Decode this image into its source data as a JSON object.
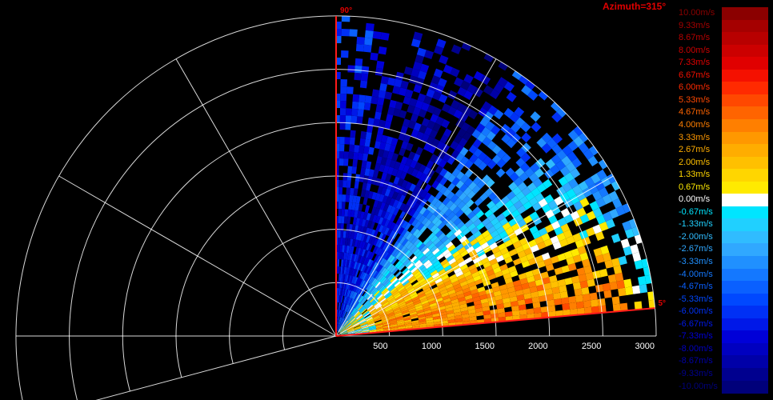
{
  "header": {
    "azimuth_label": "Azimuth=315°"
  },
  "chart_data": {
    "type": "heatmap",
    "subtype": "polar-sector-radar-velocity",
    "range_ticks": [
      500,
      1000,
      1500,
      2000,
      2500,
      3000
    ],
    "range_max": 3000,
    "scan_sector_start_label": "5°",
    "scan_sector_end_label": "90°",
    "scan_sector_deg": [
      5,
      90
    ],
    "grid_angles_deg": [
      0,
      30,
      60,
      90,
      120,
      150,
      180,
      195
    ],
    "legend": {
      "placement": "right",
      "entries": [
        {
          "label": "10.00m/s",
          "color": "#8b0000"
        },
        {
          "label": "9.33m/s",
          "color": "#a50000"
        },
        {
          "label": "8.67m/s",
          "color": "#b80000"
        },
        {
          "label": "8.00m/s",
          "color": "#cc0000"
        },
        {
          "label": "7.33m/s",
          "color": "#e00000"
        },
        {
          "label": "6.67m/s",
          "color": "#f51000"
        },
        {
          "label": "6.00m/s",
          "color": "#ff2a00"
        },
        {
          "label": "5.33m/s",
          "color": "#ff4800"
        },
        {
          "label": "4.67m/s",
          "color": "#ff6400"
        },
        {
          "label": "4.00m/s",
          "color": "#ff7f00"
        },
        {
          "label": "3.33m/s",
          "color": "#ff9800"
        },
        {
          "label": "2.67m/s",
          "color": "#ffad00"
        },
        {
          "label": "2.00m/s",
          "color": "#ffc000"
        },
        {
          "label": "1.33m/s",
          "color": "#ffd600"
        },
        {
          "label": "0.67m/s",
          "color": "#ffea00"
        },
        {
          "label": "0.00m/s",
          "color": "#ffffff"
        },
        {
          "label": "-0.67m/s",
          "color": "#00e5ff"
        },
        {
          "label": "-1.33m/s",
          "color": "#20d0ff"
        },
        {
          "label": "-2.00m/s",
          "color": "#30bcff"
        },
        {
          "label": "-2.67m/s",
          "color": "#30a8ff"
        },
        {
          "label": "-3.33m/s",
          "color": "#2090ff"
        },
        {
          "label": "-4.00m/s",
          "color": "#1478ff"
        },
        {
          "label": "-4.67m/s",
          "color": "#0a60ff"
        },
        {
          "label": "-5.33m/s",
          "color": "#0048ff"
        },
        {
          "label": "-6.00m/s",
          "color": "#0030f5"
        },
        {
          "label": "-6.67m/s",
          "color": "#0018e8"
        },
        {
          "label": "-7.33m/s",
          "color": "#0000d8"
        },
        {
          "label": "-8.00m/s",
          "color": "#0000c0"
        },
        {
          "label": "-8.67m/s",
          "color": "#0000a8"
        },
        {
          "label": "-9.33m/s",
          "color": "#00008f"
        },
        {
          "label": "-10.00m/s",
          "color": "#00007a"
        }
      ]
    }
  }
}
